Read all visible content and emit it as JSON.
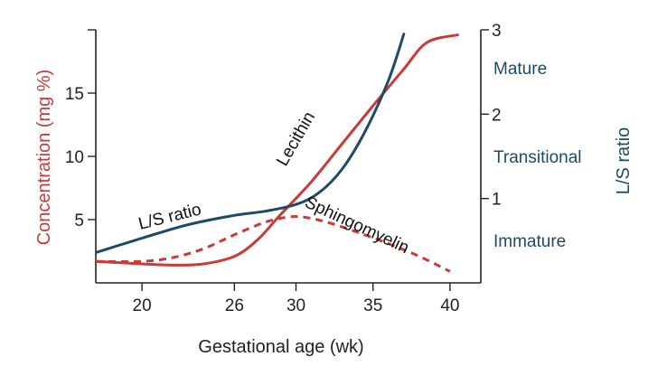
{
  "colors": {
    "lecithin": "#c93a38",
    "sphingomyelin": "#c93a38",
    "ls_ratio": "#1d4a66",
    "axis": "#222222",
    "left_axis_title": "#c93a38",
    "right_axis_title": "#1d4a66"
  },
  "chart_data": {
    "type": "line",
    "xlabel": "Gestational age (wk)",
    "ylabel": "Concentration (mg %)",
    "y2label": "L/S ratio",
    "xlim": [
      17,
      42
    ],
    "ylim": [
      0,
      20
    ],
    "y2lim": [
      0,
      3
    ],
    "x_ticks": [
      20,
      26,
      30,
      35,
      40
    ],
    "y_ticks": [
      5,
      10,
      15
    ],
    "y2_ticks": [
      1,
      2,
      3
    ],
    "grid": false,
    "zones": [
      "Mature",
      "Transitional",
      "Immature"
    ],
    "series": [
      {
        "name": "Lecithin",
        "axis": "left",
        "style": "solid",
        "x": [
          17,
          20,
          22,
          24,
          26,
          27.5,
          29,
          31,
          33,
          35,
          37,
          38.5,
          40.5
        ],
        "y": [
          1.7,
          1.5,
          1.4,
          1.5,
          2.1,
          3.4,
          5.4,
          8.0,
          11.0,
          14.0,
          16.9,
          19.0,
          19.6
        ]
      },
      {
        "name": "Sphingomyelin",
        "axis": "left",
        "style": "dashed",
        "x": [
          17,
          20,
          22,
          24,
          26,
          28,
          29.5,
          30.5,
          32,
          34,
          36,
          38,
          40
        ],
        "y": [
          1.7,
          1.7,
          2.0,
          2.7,
          3.8,
          4.8,
          5.2,
          5.2,
          4.8,
          4.0,
          3.1,
          2.1,
          0.9
        ]
      },
      {
        "name": "L/S ratio",
        "axis": "right",
        "style": "solid",
        "x": [
          17,
          20,
          23,
          26,
          28,
          30,
          31.5,
          33,
          34.5,
          36,
          37
        ],
        "y": [
          0.36,
          0.53,
          0.69,
          0.8,
          0.85,
          0.93,
          1.07,
          1.35,
          1.8,
          2.4,
          2.95
        ]
      }
    ]
  }
}
